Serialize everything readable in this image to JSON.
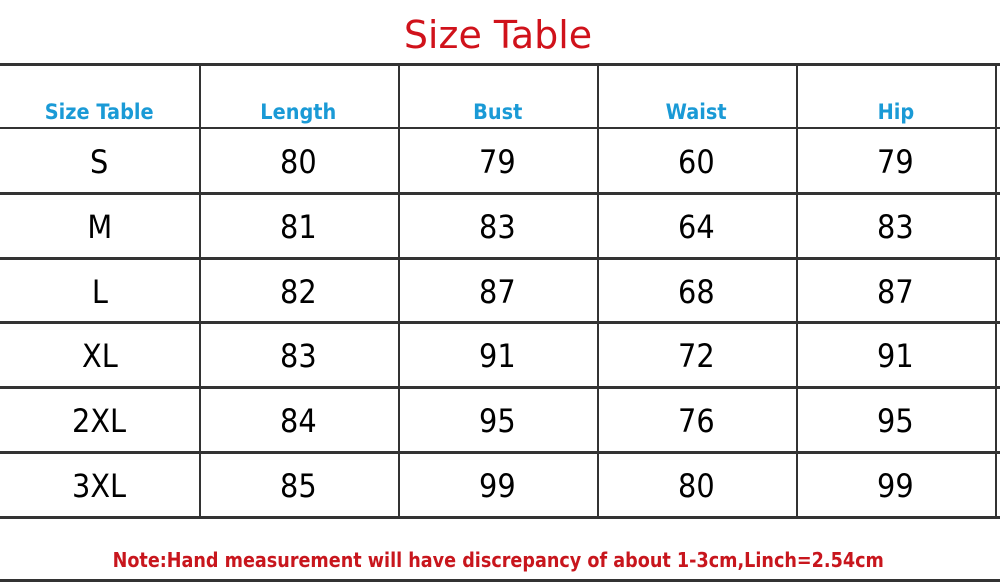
{
  "title": "Size Table",
  "headers": [
    "Size Table",
    "Length",
    "Bust",
    "Waist",
    "Hip"
  ],
  "rows": [
    [
      "S",
      "80",
      "79",
      "60",
      "79"
    ],
    [
      "M",
      "81",
      "83",
      "64",
      "83"
    ],
    [
      "L",
      "82",
      "87",
      "68",
      "87"
    ],
    [
      "XL",
      "83",
      "91",
      "72",
      "91"
    ],
    [
      "2XL",
      "84",
      "95",
      "76",
      "95"
    ],
    [
      "3XL",
      "85",
      "99",
      "80",
      "99"
    ]
  ],
  "note": "Note:Hand measurement will have discrepancy of about 1-3cm,Linch=2.54cm",
  "colors": {
    "title": "#d0121b",
    "header": "#1a9ad6",
    "note": "#c8161d"
  }
}
